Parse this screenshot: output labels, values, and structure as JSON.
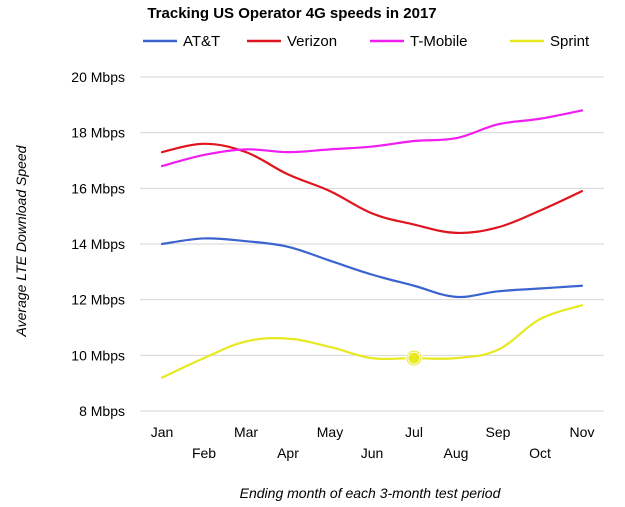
{
  "chart_data": {
    "type": "line",
    "title": "Tracking US Operator 4G speeds in 2017",
    "xlabel": "Ending month of each 3-month test period",
    "ylabel": "Average LTE Download Speed",
    "categories": [
      "Jan",
      "Feb",
      "Mar",
      "Apr",
      "May",
      "Jun",
      "Jul",
      "Aug",
      "Sep",
      "Oct",
      "Nov"
    ],
    "ylim": [
      8,
      20
    ],
    "yticks": [
      8,
      10,
      12,
      14,
      16,
      18,
      20
    ],
    "ytick_labels": [
      "8 Mbps",
      "10 Mbps",
      "12 Mbps",
      "14 Mbps",
      "16 Mbps",
      "18 Mbps",
      "20 Mbps"
    ],
    "grid": true,
    "legend_position": "top",
    "series": [
      {
        "name": "AT&T",
        "color": "#3c64d0",
        "values": [
          14.0,
          14.2,
          14.1,
          13.9,
          13.4,
          12.9,
          12.5,
          12.1,
          12.3,
          12.4,
          12.5
        ]
      },
      {
        "name": "Verizon",
        "color": "#e0141e",
        "values": [
          17.3,
          17.6,
          17.3,
          16.5,
          15.9,
          15.1,
          14.7,
          14.4,
          14.6,
          15.2,
          15.9
        ]
      },
      {
        "name": "T-Mobile",
        "color": "#f01ef0",
        "values": [
          16.8,
          17.2,
          17.4,
          17.3,
          17.4,
          17.5,
          17.7,
          17.8,
          18.3,
          18.5,
          18.8
        ]
      },
      {
        "name": "Sprint",
        "color": "#e8e820",
        "values": [
          9.2,
          9.9,
          10.5,
          10.6,
          10.3,
          9.9,
          9.9,
          9.9,
          10.2,
          11.3,
          11.8
        ],
        "highlighted_index": 6
      }
    ]
  }
}
